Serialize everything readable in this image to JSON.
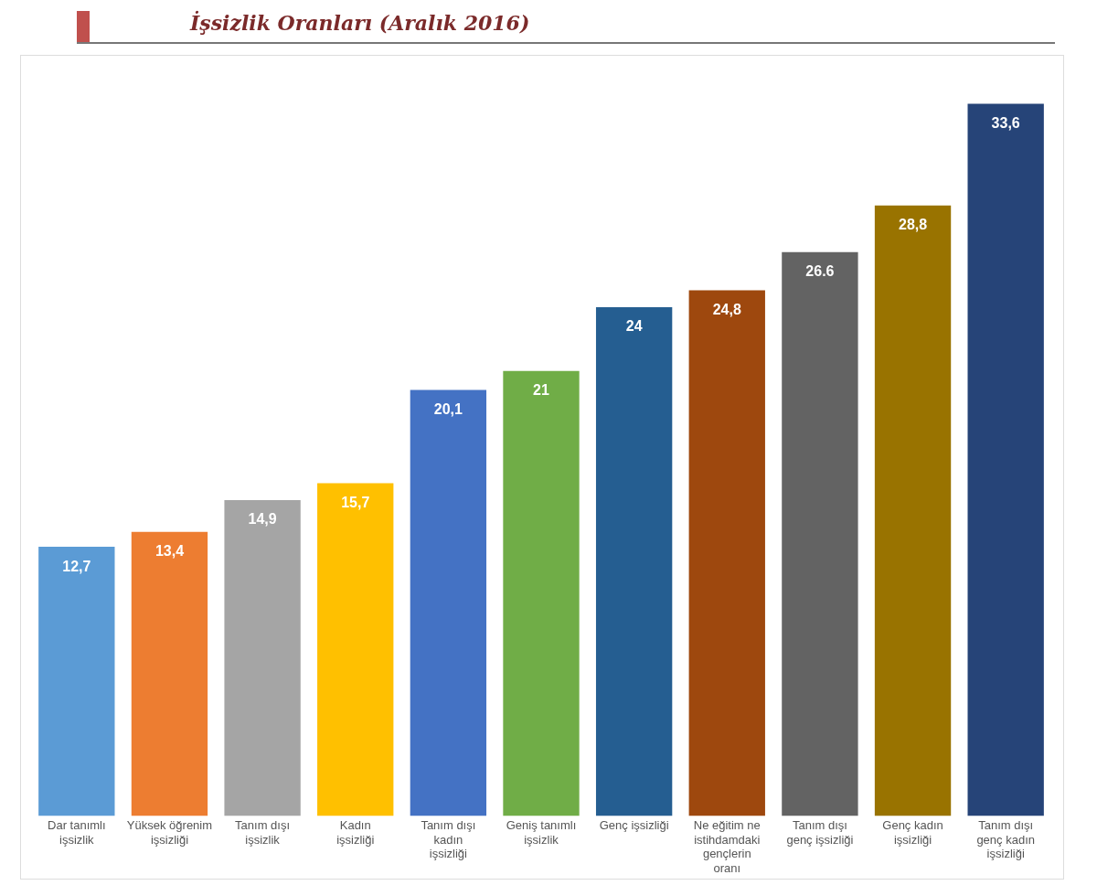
{
  "chart_data": {
    "type": "bar",
    "title": "İşsizlik Oranları (Aralık 2016)",
    "categories": [
      "Dar tanımlı işsizlik",
      "Yüksek öğrenim işsizliği",
      "Tanım dışı işsizlik",
      "Kadın işsizliği",
      "Tanım dışı kadın işsizliği",
      "Geniş tanımlı işsizlik",
      "Genç işsizliği",
      "Ne eğitim ne istihdamdaki gençlerin oranı",
      "Tanım dışı genç işsizliği",
      "Genç kadın işsizliği",
      "Tanım dışı genç kadın işsizliği"
    ],
    "values": [
      12.7,
      13.4,
      14.9,
      15.7,
      20.1,
      21,
      24,
      24.8,
      26.6,
      28.8,
      33.6
    ],
    "value_labels": [
      "12,7",
      "13,4",
      "14,9",
      "15,7",
      "20,1",
      "21",
      "24",
      "24,8",
      "26.6",
      "28,8",
      "33,6"
    ],
    "colors": [
      "#5b9bd5",
      "#ed7d31",
      "#a5a5a5",
      "#ffc000",
      "#4472c4",
      "#70ad47",
      "#255e91",
      "#9e480e",
      "#636363",
      "#997300",
      "#264478"
    ],
    "grid": false,
    "legend": false
  }
}
